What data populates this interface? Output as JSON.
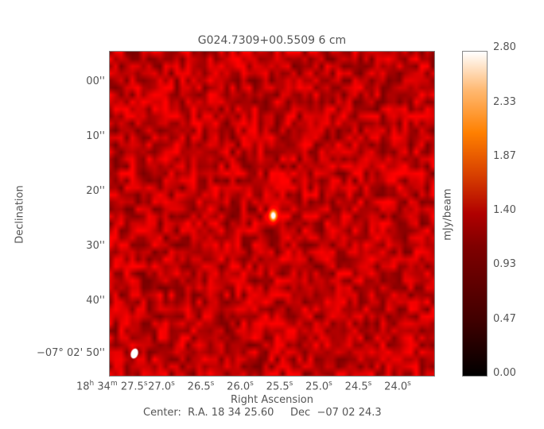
{
  "chart_data": {
    "type": "heatmap",
    "title": "G024.7309+00.5509 6 cm",
    "xlabel": "Right Ascension",
    "ylabel": "Declination",
    "x_prefix": "18h 34m 27.5s",
    "x_ticks": [
      "27.0",
      "26.5",
      "26.0",
      "25.5",
      "25.0",
      "24.5",
      "24.0"
    ],
    "y_ticks": [
      "00''",
      "10''",
      "20''",
      "30''",
      "40''",
      "50''"
    ],
    "y_prefix": "−07° 02'",
    "colorbar": {
      "label": "mJy/beam",
      "ticks": [
        "0.00",
        "0.47",
        "0.93",
        "1.40",
        "1.87",
        "2.33",
        "2.80"
      ],
      "range": [
        0,
        2.8
      ],
      "colormap": "red-temperature (black-red-orange-white)"
    },
    "source": {
      "ra": "18 34 25.6",
      "dec": "-07 02 24",
      "peak_mJy_beam": 2.8
    },
    "beam": "white ellipse, lower-left",
    "center": "Center:  R.A. 18 34 25.60     Dec  −07 02 24.3"
  }
}
